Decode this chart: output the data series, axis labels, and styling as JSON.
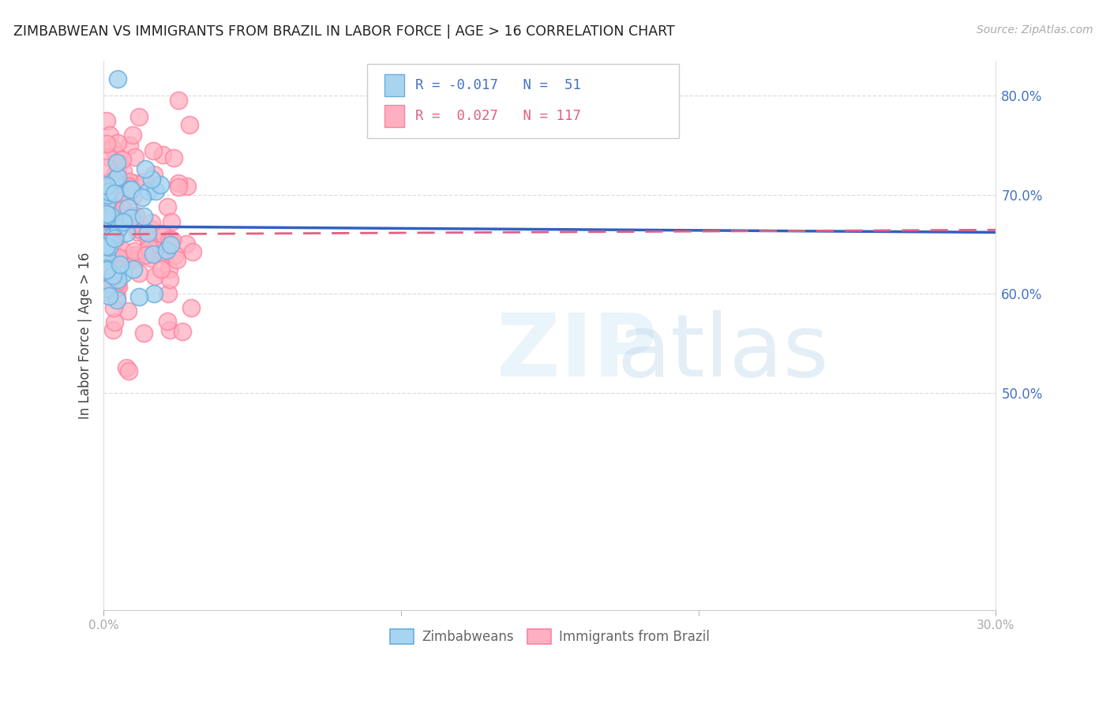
{
  "title": "ZIMBABWEAN VS IMMIGRANTS FROM BRAZIL IN LABOR FORCE | AGE > 16 CORRELATION CHART",
  "source": "Source: ZipAtlas.com",
  "ylabel": "In Labor Force | Age > 16",
  "right_yticks": [
    0.5,
    0.6,
    0.7,
    0.8
  ],
  "right_yticklabels": [
    "50.0%",
    "60.0%",
    "70.0%",
    "80.0%"
  ],
  "xlim": [
    0.0,
    0.3
  ],
  "ylim": [
    0.28,
    0.835
  ],
  "color_blue_fill": "#a8d4f0",
  "color_pink_fill": "#ffb0c0",
  "color_blue_edge": "#6aaedd",
  "color_pink_edge": "#ff80a0",
  "color_blue_line": "#3060c0",
  "color_pink_line": "#e06080",
  "R_blue": -0.017,
  "N_blue": 51,
  "R_pink": 0.027,
  "N_pink": 117,
  "seed_blue": 42,
  "seed_pink": 99
}
